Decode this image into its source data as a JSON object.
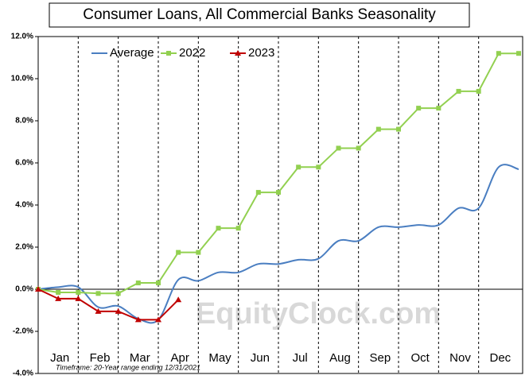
{
  "chart_data": {
    "type": "line",
    "title": "Consumer Loans, All Commercial Banks Seasonality",
    "watermark": "EquityClock.com",
    "footnote": "Timeframe: 20-Year range ending 12/31/2021",
    "categories": [
      "Jan",
      "Feb",
      "Mar",
      "Apr",
      "May",
      "Jun",
      "Jul",
      "Aug",
      "Sep",
      "Oct",
      "Nov",
      "Dec"
    ],
    "x": [
      0,
      1,
      2,
      3,
      4,
      5,
      6,
      7,
      8,
      9,
      10,
      11,
      12,
      13,
      14,
      15,
      16,
      17,
      18,
      19,
      20,
      21,
      22,
      23,
      24
    ],
    "xlim": [
      0,
      24
    ],
    "ylim": [
      -4,
      12
    ],
    "yticks": [
      {
        "value": -4,
        "label": "-4.0%"
      },
      {
        "value": -2,
        "label": "-2.0%"
      },
      {
        "value": 0,
        "label": "0.0%"
      },
      {
        "value": 2,
        "label": "2.0%"
      },
      {
        "value": 4,
        "label": "4.0%"
      },
      {
        "value": 6,
        "label": "6.0%"
      },
      {
        "value": 8,
        "label": "8.0%"
      },
      {
        "value": 10,
        "label": "10.0%"
      },
      {
        "value": 12,
        "label": "12.0%"
      }
    ],
    "legend": "top-left",
    "series": [
      {
        "name": "Average",
        "color": "#4a7ec1",
        "marker": "none",
        "smooth": true,
        "values": [
          0,
          0.1,
          0.1,
          -0.85,
          -0.8,
          -1.4,
          -1.45,
          0.45,
          0.4,
          0.8,
          0.8,
          1.2,
          1.2,
          1.4,
          1.45,
          2.3,
          2.3,
          2.95,
          2.95,
          3.05,
          3.05,
          3.85,
          3.85,
          5.8,
          5.7
        ]
      },
      {
        "name": "2022",
        "color": "#92d050",
        "marker": "square",
        "values": [
          0,
          -0.15,
          -0.15,
          -0.2,
          -0.2,
          0.3,
          0.3,
          1.75,
          1.75,
          2.9,
          2.9,
          4.6,
          4.6,
          5.8,
          5.8,
          6.7,
          6.7,
          7.6,
          7.6,
          8.6,
          8.6,
          9.4,
          9.4,
          11.2,
          11.2
        ]
      },
      {
        "name": "2023",
        "color": "#c00000",
        "marker": "triangle",
        "values": [
          0,
          -0.45,
          -0.45,
          -1.05,
          -1.05,
          -1.45,
          -1.45,
          -0.5,
          null,
          null,
          null,
          null,
          null,
          null,
          null,
          null,
          null,
          null,
          null,
          null,
          null,
          null,
          null,
          null,
          null
        ]
      }
    ]
  }
}
